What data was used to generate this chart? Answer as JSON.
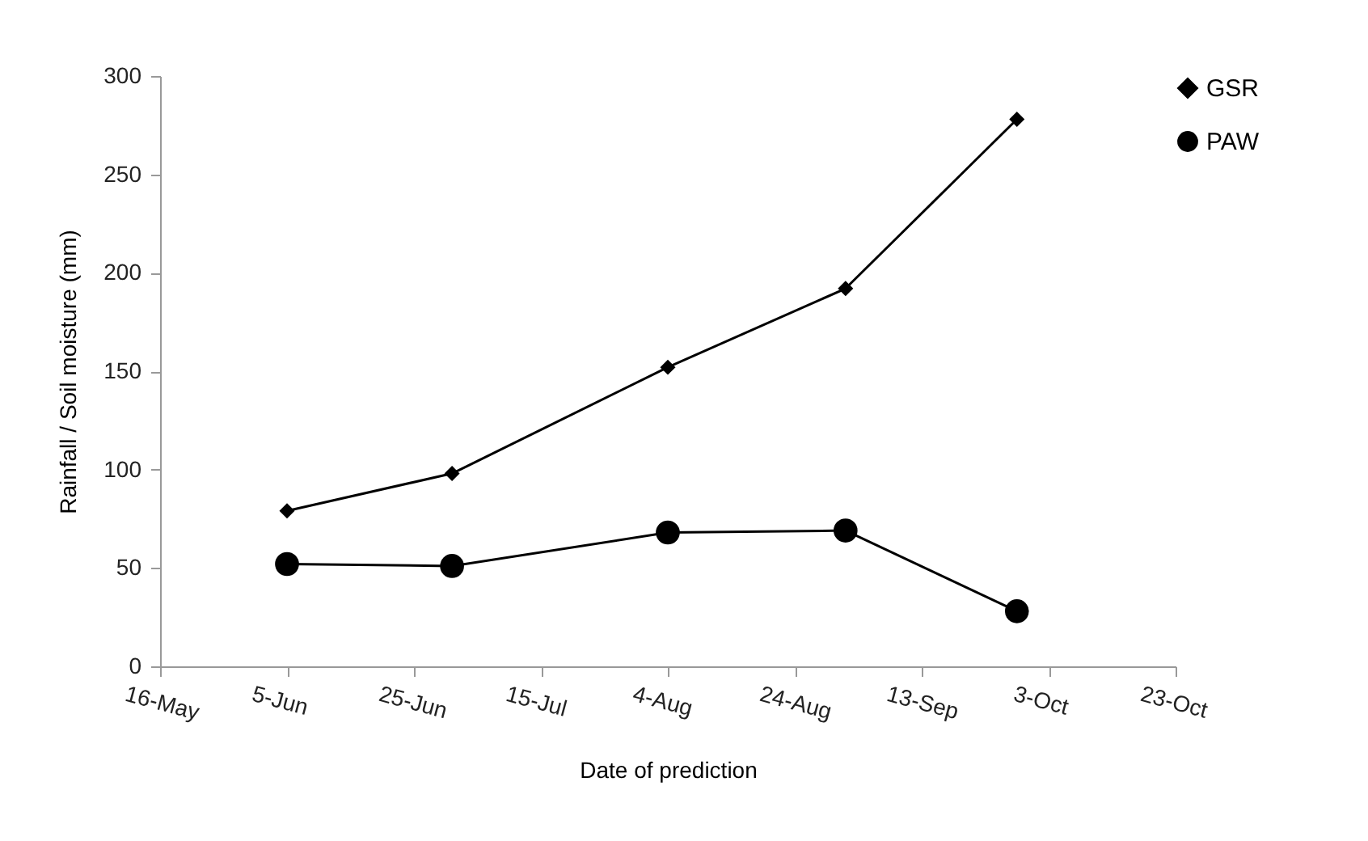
{
  "chart_data": {
    "type": "line",
    "xlabel": "Date of prediction",
    "ylabel": "Rainfall / Soil moisture (mm)",
    "x": [
      "--06-05",
      "--07-01",
      "--08-04",
      "--09-01",
      "--09-28"
    ],
    "series": [
      {
        "name": "GSR",
        "color": "#000000",
        "marker": "diamond",
        "values": [
          79,
          98,
          152,
          192,
          278
        ]
      },
      {
        "name": "PAW",
        "color": "#000000",
        "marker": "circle",
        "values": [
          52,
          51,
          68,
          69,
          28
        ]
      }
    ],
    "xlim": [
      "--05-16",
      "--10-23"
    ],
    "xticks": [
      {
        "value": "--05-16",
        "label": "16-May"
      },
      {
        "value": "--06-05",
        "label": "5-Jun"
      },
      {
        "value": "--06-25",
        "label": "25-Jun"
      },
      {
        "value": "--07-15",
        "label": "15-Jul"
      },
      {
        "value": "--08-04",
        "label": "4-Aug"
      },
      {
        "value": "--08-24",
        "label": "24-Aug"
      },
      {
        "value": "--09-13",
        "label": "13-Sep"
      },
      {
        "value": "--10-03",
        "label": "3-Oct"
      },
      {
        "value": "--10-23",
        "label": "23-Oct"
      }
    ],
    "ylim": [
      0,
      300
    ],
    "yticks": [
      0,
      50,
      100,
      150,
      200,
      250,
      300
    ],
    "grid": false,
    "legend": "right"
  }
}
